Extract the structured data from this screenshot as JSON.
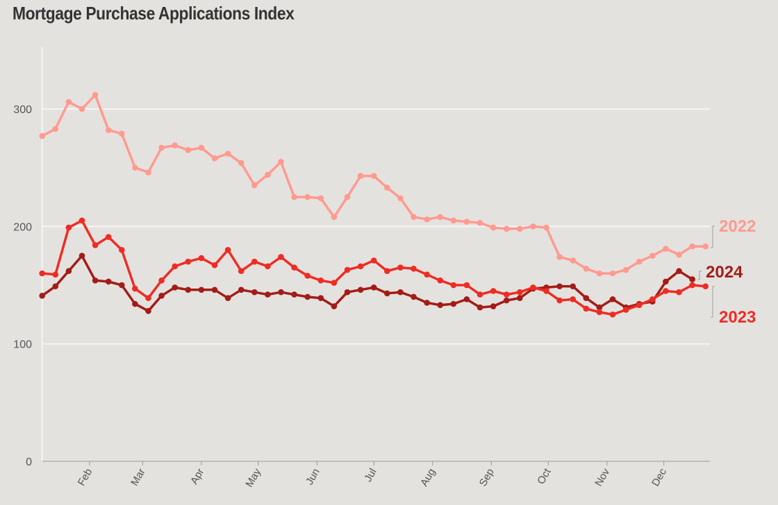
{
  "chart_data": {
    "type": "line",
    "title": "Mortgage Purchase Applications Index",
    "xlabel": "",
    "ylabel": "",
    "ylim": [
      0,
      350
    ],
    "y_ticks": [
      0,
      100,
      200,
      300
    ],
    "x_tick_labels": [
      "Feb",
      "Mar",
      "Apr",
      "May",
      "Jun",
      "Jul",
      "Aug",
      "Sep",
      "Oct",
      "Nov",
      "Dec"
    ],
    "x_frequency": "weekly",
    "grid": "horizontal",
    "legend": "direct labels at right end of lines",
    "series": [
      {
        "name": "2022",
        "color": "#ff9a90",
        "values": [
          277,
          283,
          306,
          300,
          312,
          282,
          279,
          250,
          246,
          267,
          269,
          265,
          267,
          258,
          262,
          254,
          235,
          244,
          255,
          225,
          225,
          224,
          208,
          225,
          243,
          243,
          233,
          224,
          208,
          206,
          208,
          205,
          204,
          203,
          199,
          198,
          198,
          200,
          199,
          174,
          171,
          164,
          160,
          160,
          163,
          170,
          175,
          181,
          176,
          183,
          183
        ]
      },
      {
        "name": "2023",
        "color": "#ee2c23",
        "values": [
          160,
          159,
          199,
          205,
          184,
          191,
          180,
          147,
          139,
          154,
          166,
          170,
          173,
          167,
          180,
          162,
          170,
          166,
          174,
          165,
          158,
          154,
          152,
          163,
          166,
          171,
          162,
          165,
          164,
          159,
          154,
          150,
          150,
          142,
          145,
          142,
          144,
          148,
          145,
          137,
          138,
          130,
          127,
          125,
          129,
          133,
          138,
          145,
          144,
          150,
          149
        ]
      },
      {
        "name": "2024",
        "color": "#a31c17",
        "values": [
          141,
          149,
          162,
          175,
          154,
          153,
          150,
          134,
          128,
          141,
          148,
          146,
          146,
          146,
          139,
          146,
          144,
          142,
          144,
          142,
          140,
          139,
          132,
          144,
          146,
          148,
          143,
          144,
          140,
          135,
          133,
          134,
          138,
          131,
          132,
          137,
          139,
          147,
          148,
          149,
          149,
          139,
          131,
          138,
          131,
          134,
          136,
          153,
          162,
          155
        ]
      }
    ]
  }
}
